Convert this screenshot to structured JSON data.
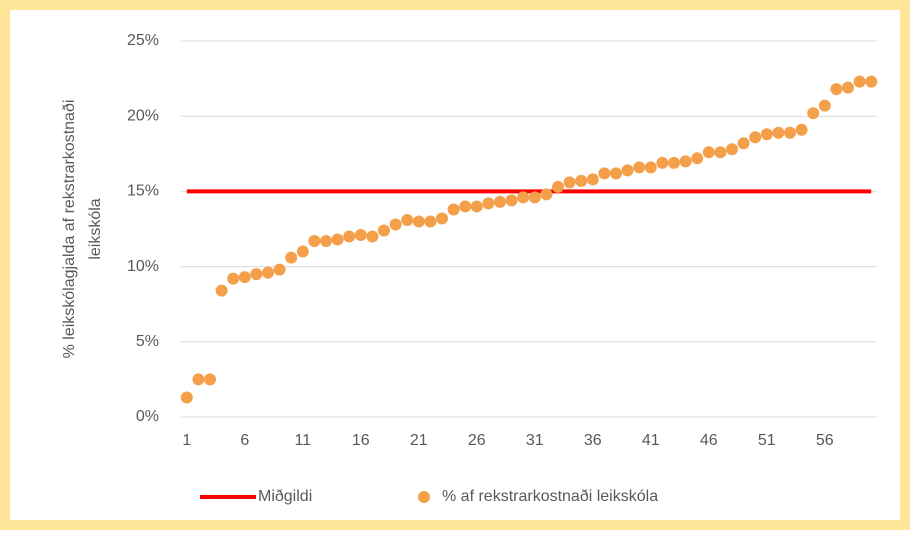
{
  "chart_data": {
    "type": "scatter",
    "y_axis_label": [
      "% leikskólagjalda af rekstrarkostnaði",
      "leikskóla"
    ],
    "categories": [
      "1",
      null,
      null,
      null,
      null,
      "6",
      null,
      null,
      null,
      null,
      "11",
      null,
      null,
      null,
      null,
      "16",
      null,
      null,
      null,
      null,
      "21",
      null,
      null,
      null,
      null,
      "26",
      null,
      null,
      null,
      null,
      "31",
      null,
      null,
      null,
      null,
      "36",
      null,
      null,
      null,
      null,
      "41",
      null,
      null,
      null,
      null,
      "46",
      null,
      null,
      null,
      null,
      "51",
      null,
      null,
      null,
      null,
      "56",
      null,
      null,
      null,
      null
    ],
    "series": [
      {
        "name": "Miðgildi",
        "type": "line",
        "color": "#ff0000",
        "values": [
          15,
          15,
          15,
          15,
          15,
          15,
          15,
          15,
          15,
          15,
          15,
          15,
          15,
          15,
          15,
          15,
          15,
          15,
          15,
          15,
          15,
          15,
          15,
          15,
          15,
          15,
          15,
          15,
          15,
          15,
          15,
          15,
          15,
          15,
          15,
          15,
          15,
          15,
          15,
          15,
          15,
          15,
          15,
          15,
          15,
          15,
          15,
          15,
          15,
          15,
          15,
          15,
          15,
          15,
          15,
          15,
          15,
          15,
          15,
          15
        ]
      },
      {
        "name": "% af rekstrarkostnaði leikskóla",
        "type": "scatter",
        "color": "#f4a04a",
        "values": [
          1.3,
          2.5,
          2.5,
          8.4,
          9.2,
          9.3,
          9.5,
          9.6,
          9.8,
          10.6,
          11.0,
          11.7,
          11.7,
          11.8,
          12.0,
          12.1,
          12.0,
          12.4,
          12.8,
          13.1,
          13.0,
          13.0,
          13.2,
          13.8,
          14.0,
          14.0,
          14.2,
          14.3,
          14.4,
          14.6,
          14.6,
          14.8,
          15.3,
          15.6,
          15.7,
          15.8,
          16.2,
          16.2,
          16.4,
          16.6,
          16.6,
          16.9,
          16.9,
          17.0,
          17.2,
          17.6,
          17.6,
          17.8,
          18.2,
          18.6,
          18.8,
          18.9,
          18.9,
          19.1,
          20.2,
          20.7,
          21.8,
          21.9,
          22.3,
          22.3
        ]
      }
    ],
    "ylim": [
      0,
      25
    ],
    "yticks": [
      {
        "value": 0,
        "label": "0%"
      },
      {
        "value": 5,
        "label": "5%"
      },
      {
        "value": 10,
        "label": "10%"
      },
      {
        "value": 15,
        "label": "15%"
      },
      {
        "value": 20,
        "label": "20%"
      },
      {
        "value": 25,
        "label": "25%"
      }
    ],
    "grid": true,
    "legend": "bottom"
  }
}
